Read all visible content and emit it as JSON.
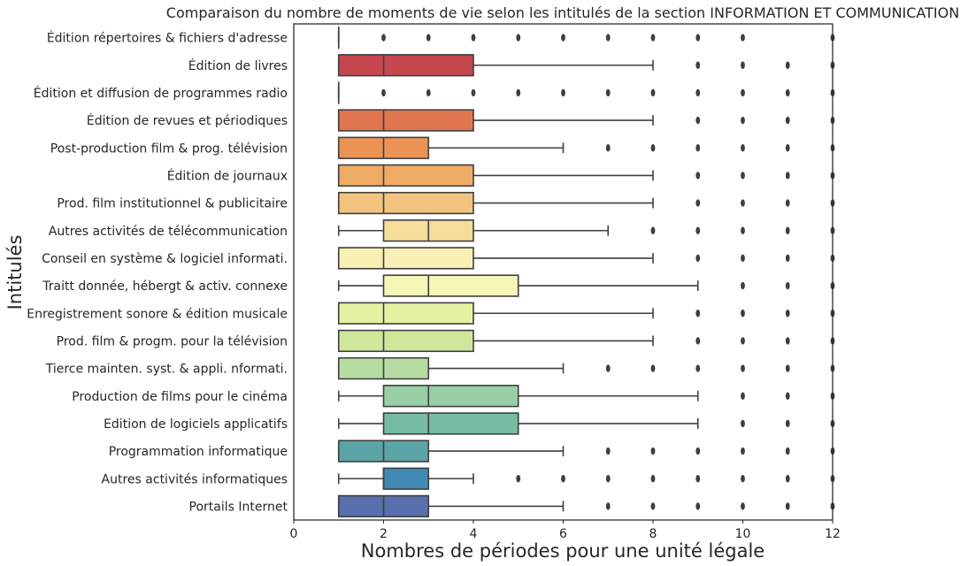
{
  "chart_data": {
    "type": "box",
    "title": "Comparaison du nombre de moments de vie selon les intitulés de la section INFORMATION ET COMMUNICATION",
    "xlabel": "Nombres de périodes pour une unité légale",
    "ylabel": "Intitulés",
    "xlim": [
      0,
      12
    ],
    "xticks": [
      0,
      2,
      4,
      6,
      8,
      10,
      12
    ],
    "grid": false,
    "categories": [
      {
        "label": "Édition répertoires & fichiers d'adresse",
        "color": "#9e0142",
        "q1": 1,
        "median": 1,
        "q3": 1,
        "whisker_low": 1,
        "whisker_high": 1,
        "outliers": [
          2,
          3,
          4,
          5,
          6,
          7,
          8,
          9,
          10,
          12
        ]
      },
      {
        "label": "Édition de livres",
        "color": "#c7474f",
        "q1": 1,
        "median": 2,
        "q3": 4,
        "whisker_low": 1,
        "whisker_high": 8,
        "outliers": [
          9,
          10,
          11,
          12
        ]
      },
      {
        "label": "Édition et diffusion de programmes radio",
        "color": "#d53e4f",
        "q1": 1,
        "median": 1,
        "q3": 1,
        "whisker_low": 1,
        "whisker_high": 1,
        "outliers": [
          2,
          3,
          4,
          5,
          6,
          7,
          8,
          9,
          10,
          11,
          12
        ]
      },
      {
        "label": "Édition de revues et périodiques",
        "color": "#e0764f",
        "q1": 1,
        "median": 2,
        "q3": 4,
        "whisker_low": 1,
        "whisker_high": 8,
        "outliers": [
          9,
          10,
          11,
          12
        ]
      },
      {
        "label": "Post-production film & prog. télévision",
        "color": "#ea9354",
        "q1": 1,
        "median": 2,
        "q3": 3,
        "whisker_low": 1,
        "whisker_high": 6,
        "outliers": [
          7,
          8,
          9,
          10,
          11,
          12
        ]
      },
      {
        "label": "Édition de journaux",
        "color": "#efac65",
        "q1": 1,
        "median": 2,
        "q3": 4,
        "whisker_low": 1,
        "whisker_high": 8,
        "outliers": [
          9,
          10,
          11,
          12
        ]
      },
      {
        "label": "Prod. film institutionnel & publicitaire",
        "color": "#f2c47f",
        "q1": 1,
        "median": 2,
        "q3": 4,
        "whisker_low": 1,
        "whisker_high": 8,
        "outliers": [
          9,
          10,
          11,
          12
        ]
      },
      {
        "label": "Autres activités de télécommunication",
        "color": "#f5dd9a",
        "q1": 2,
        "median": 3,
        "q3": 4,
        "whisker_low": 1,
        "whisker_high": 7,
        "outliers": [
          8,
          9,
          10,
          11,
          12
        ]
      },
      {
        "label": "Conseil en système & logiciel informati.",
        "color": "#f8f0b4",
        "q1": 1,
        "median": 2,
        "q3": 4,
        "whisker_low": 1,
        "whisker_high": 8,
        "outliers": [
          9,
          10,
          11,
          12
        ]
      },
      {
        "label": "Traitt donnée, hébergt & activ. connexe",
        "color": "#f4f7b6",
        "q1": 2,
        "median": 3,
        "q3": 5,
        "whisker_low": 1,
        "whisker_high": 9,
        "outliers": [
          10,
          11,
          12
        ]
      },
      {
        "label": "Enregistrement sonore & édition musicale",
        "color": "#e5f1a3",
        "q1": 1,
        "median": 2,
        "q3": 4,
        "whisker_low": 1,
        "whisker_high": 8,
        "outliers": [
          9,
          10,
          11,
          12
        ]
      },
      {
        "label": "Prod. film & progm. pour la télévision",
        "color": "#cfe79c",
        "q1": 1,
        "median": 2,
        "q3": 4,
        "whisker_low": 1,
        "whisker_high": 8,
        "outliers": [
          9,
          10,
          11,
          12
        ]
      },
      {
        "label": "Tierce mainten. syst. & appli. nformati.",
        "color": "#b6dca3",
        "q1": 1,
        "median": 2,
        "q3": 3,
        "whisker_low": 1,
        "whisker_high": 6,
        "outliers": [
          7,
          8,
          9,
          10,
          11,
          12
        ]
      },
      {
        "label": "Production de films pour le cinéma",
        "color": "#98cfa6",
        "q1": 2,
        "median": 3,
        "q3": 5,
        "whisker_low": 1,
        "whisker_high": 9,
        "outliers": [
          10,
          11,
          12
        ]
      },
      {
        "label": "Edition de logiciels applicatifs",
        "color": "#76bca1",
        "q1": 2,
        "median": 3,
        "q3": 5,
        "whisker_low": 1,
        "whisker_high": 9,
        "outliers": [
          10,
          11,
          12
        ]
      },
      {
        "label": "Programmation informatique",
        "color": "#5aa3a6",
        "q1": 1,
        "median": 2,
        "q3": 3,
        "whisker_low": 1,
        "whisker_high": 6,
        "outliers": [
          7,
          8,
          9,
          10,
          11,
          12
        ]
      },
      {
        "label": "Autres activités informatiques",
        "color": "#4189b2",
        "q1": 2,
        "median": 2,
        "q3": 3,
        "whisker_low": 1,
        "whisker_high": 4,
        "outliers": [
          5,
          6,
          7,
          8,
          9,
          10,
          11,
          12
        ]
      },
      {
        "label": "Portails Internet",
        "color": "#5a6fad",
        "q1": 1,
        "median": 2,
        "q3": 3,
        "whisker_low": 1,
        "whisker_high": 6,
        "outliers": [
          7,
          8,
          9,
          10,
          11,
          12
        ]
      }
    ]
  }
}
